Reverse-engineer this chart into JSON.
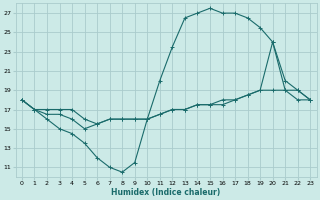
{
  "xlabel": "Humidex (Indice chaleur)",
  "bg_color": "#cceae7",
  "grid_color": "#aacccc",
  "line_color": "#1a6b6b",
  "xlim": [
    -0.5,
    23.5
  ],
  "ylim": [
    10,
    28
  ],
  "xticks": [
    0,
    1,
    2,
    3,
    4,
    5,
    6,
    7,
    8,
    9,
    10,
    11,
    12,
    13,
    14,
    15,
    16,
    17,
    18,
    19,
    20,
    21,
    22,
    23
  ],
  "yticks": [
    11,
    13,
    15,
    17,
    19,
    21,
    23,
    25,
    27
  ],
  "curve1_x": [
    0,
    1,
    2,
    3,
    4,
    5,
    6,
    7,
    8,
    9,
    10,
    11,
    12,
    13,
    14,
    15,
    16,
    17,
    18,
    19,
    20,
    21,
    22,
    23
  ],
  "curve1_y": [
    18,
    17,
    16,
    15,
    14.5,
    13.5,
    12,
    11,
    10.5,
    11.5,
    16,
    20,
    23.5,
    26.5,
    27,
    27.5,
    27,
    27,
    26.5,
    25.5,
    24,
    20,
    19,
    18
  ],
  "curve2_x": [
    0,
    1,
    2,
    3,
    4,
    5,
    6,
    7,
    8,
    9,
    10,
    11,
    12,
    13,
    14,
    15,
    16,
    17,
    18,
    19,
    20,
    21,
    22,
    23
  ],
  "curve2_y": [
    18,
    17,
    16.5,
    16.5,
    16,
    15,
    15.5,
    16,
    16,
    16,
    16,
    16.5,
    17,
    17,
    17.5,
    17.5,
    18,
    18,
    18.5,
    19,
    19,
    19,
    19,
    18
  ],
  "curve3_x": [
    0,
    1,
    2,
    3,
    4,
    5,
    6,
    7,
    8,
    9,
    10,
    11,
    12,
    13,
    14,
    15,
    16,
    17,
    18,
    19,
    20,
    21,
    22,
    23
  ],
  "curve3_y": [
    18,
    17,
    17,
    17,
    17,
    16,
    15.5,
    16,
    16,
    16,
    16,
    16.5,
    17,
    17,
    17.5,
    17.5,
    17.5,
    18,
    18.5,
    19,
    24,
    19,
    18,
    18
  ]
}
